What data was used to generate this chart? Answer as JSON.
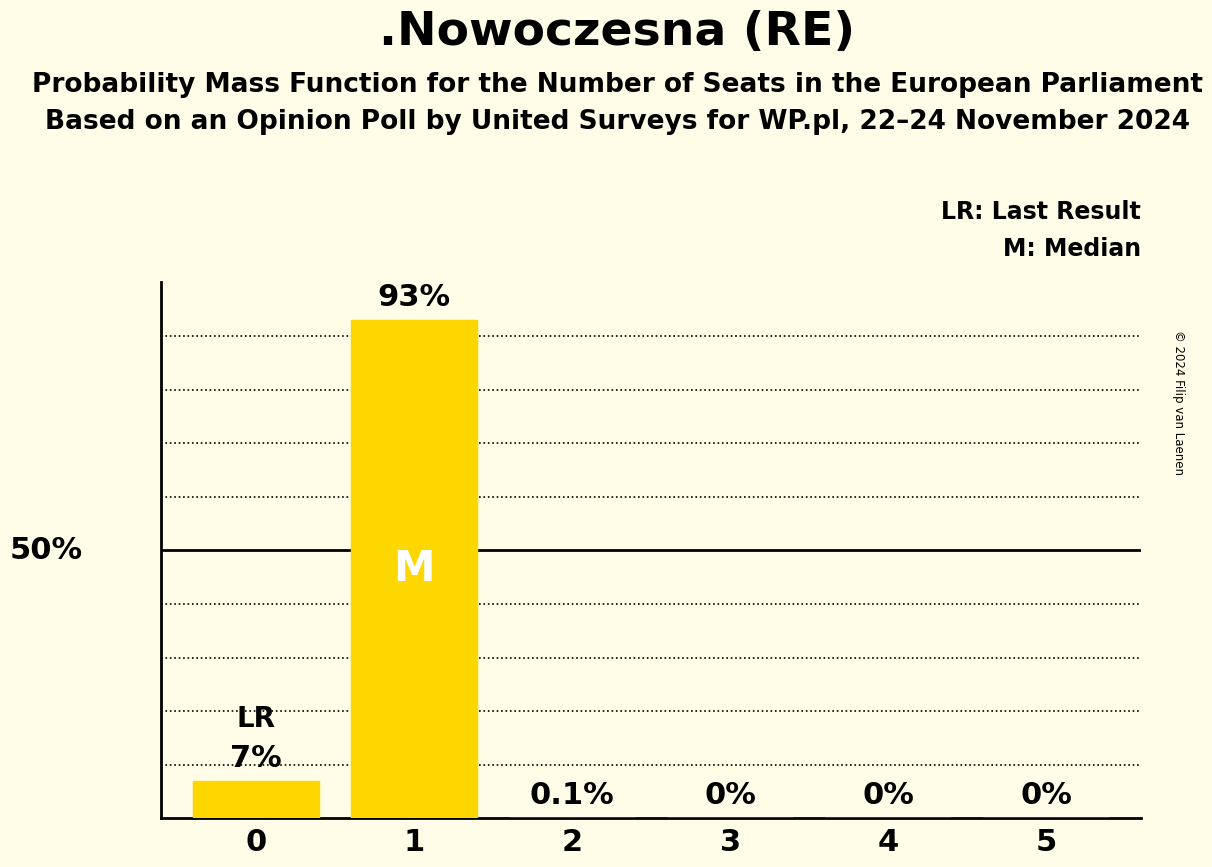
{
  "title": ".Nowoczesna (RE)",
  "subtitle1": "Probability Mass Function for the Number of Seats in the European Parliament",
  "subtitle2": "Based on an Opinion Poll by United Surveys for WP.pl, 22–24 November 2024",
  "copyright": "© 2024 Filip van Laenen",
  "categories": [
    0,
    1,
    2,
    3,
    4,
    5
  ],
  "values": [
    7.0,
    93.0,
    0.1,
    0.0,
    0.0,
    0.0
  ],
  "bar_labels": [
    "7%",
    "93%",
    "0.1%",
    "0%",
    "0%",
    "0%"
  ],
  "bar_color": "#FFD700",
  "background_color": "#FFFDE7",
  "median_idx": 1,
  "last_result_idx": 0,
  "ylim": [
    0,
    100
  ],
  "ylabel_50": "50%",
  "legend_lr": "LR: Last Result",
  "legend_m": "M: Median",
  "title_fontsize": 34,
  "subtitle_fontsize": 19,
  "bar_label_fontsize": 22,
  "axis_tick_fontsize": 22,
  "fifty_label_fontsize": 22,
  "legend_fontsize": 17,
  "m_label_fontsize": 30,
  "lr_label_fontsize": 20,
  "grid_dotted_levels": [
    10,
    20,
    30,
    40,
    60,
    70,
    80,
    90
  ],
  "grid_solid_level": 50
}
